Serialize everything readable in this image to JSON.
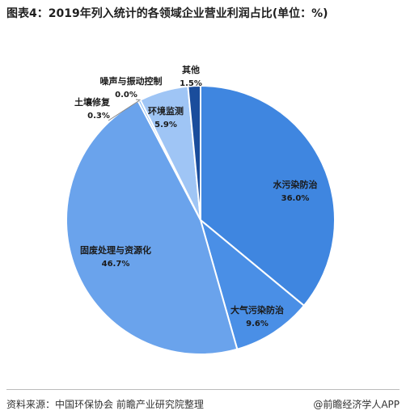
{
  "title": "图表4：2019年列入统计的各领域企业营业利润占比(单位：%)",
  "footer": {
    "source": "资料来源：中国环保协会 前瞻产业研究院整理",
    "brand": "@前瞻经济学人APP"
  },
  "chart_data": {
    "type": "pie",
    "title": "图表4：2019年列入统计的各领域企业营业利润占比(单位：%)",
    "unit": "%",
    "slices": [
      {
        "label": "水污染防治",
        "value": 36.0,
        "value_label": "36.0%",
        "color": "#3f86e0"
      },
      {
        "label": "大气污染防治",
        "value": 9.6,
        "value_label": "9.6%",
        "color": "#4a8fe6"
      },
      {
        "label": "固废处理与资源化",
        "value": 46.7,
        "value_label": "46.7%",
        "color": "#6aa3ec"
      },
      {
        "label": "土壤修复",
        "value": 0.3,
        "value_label": "0.3%",
        "color": "#7eb3f0"
      },
      {
        "label": "噪声与振动控制",
        "value": 0.0,
        "value_label": "0.0%",
        "color": "#8fc0f2"
      },
      {
        "label": "环境监测",
        "value": 5.9,
        "value_label": "5.9%",
        "color": "#9fc5f5"
      },
      {
        "label": "其他",
        "value": 1.5,
        "value_label": "1.5%",
        "color": "#1a4d9c"
      }
    ],
    "start_angle": "12 o'clock",
    "direction": "clockwise",
    "legend": "none (labels placed on/near slices)"
  }
}
